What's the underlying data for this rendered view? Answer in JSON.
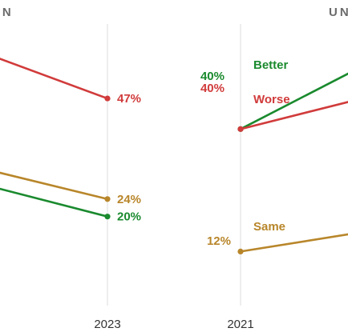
{
  "colors": {
    "worse": "#d13b3b",
    "better": "#1a8a2e",
    "same": "#b8862a",
    "gridline": "#dcdcdc"
  },
  "chart_data": [
    {
      "type": "line",
      "title": "DEN",
      "x": [
        "2023"
      ],
      "visible_tick_labels": [
        "2023"
      ],
      "ylim": [
        0,
        60
      ],
      "series": [
        {
          "key": "worse",
          "values": [
            47
          ],
          "value_labels": [
            "47%"
          ]
        },
        {
          "key": "same",
          "values": [
            24
          ],
          "value_labels": [
            "24%"
          ]
        },
        {
          "key": "better",
          "values": [
            20
          ],
          "value_labels": [
            "20%"
          ]
        }
      ]
    },
    {
      "type": "line",
      "title": "UN",
      "x": [
        "2021"
      ],
      "visible_tick_labels": [
        "2021"
      ],
      "ylim": [
        0,
        60
      ],
      "series": [
        {
          "key": "better",
          "name": "Better",
          "values": [
            40
          ],
          "value_labels": [
            "40%"
          ]
        },
        {
          "key": "worse",
          "name": "Worse",
          "values": [
            40
          ],
          "value_labels": [
            "40%"
          ]
        },
        {
          "key": "same",
          "name": "Same",
          "values": [
            12
          ],
          "value_labels": [
            "12%"
          ]
        }
      ]
    }
  ]
}
